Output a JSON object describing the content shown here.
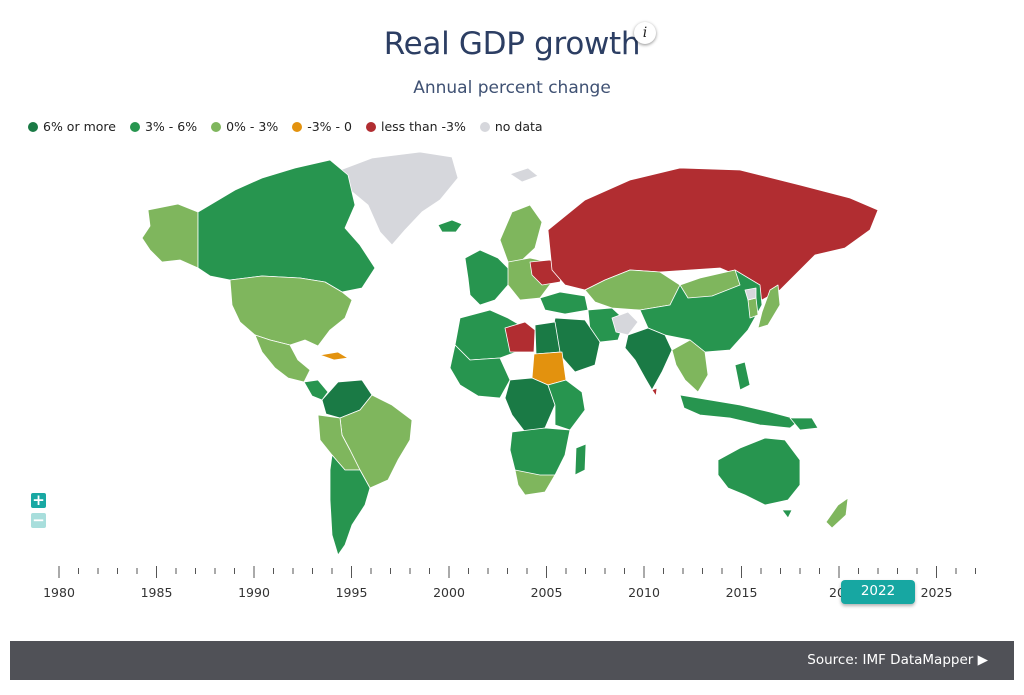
{
  "title": "Real GDP growth",
  "info_icon": "i",
  "subtitle": "Annual percent change",
  "legend": [
    {
      "label": "6% or more",
      "color": "#1a7a45"
    },
    {
      "label": "3% - 6%",
      "color": "#27954f"
    },
    {
      "label": "0% - 3%",
      "color": "#7fb65d"
    },
    {
      "label": "-3% - 0",
      "color": "#e3920e"
    },
    {
      "label": "less than -3%",
      "color": "#b12d31"
    },
    {
      "label": "no data",
      "color": "#d6d7dc"
    }
  ],
  "zoom": {
    "in_label": "+",
    "out_label": "−"
  },
  "timeline": {
    "year_labels": [
      "1980",
      "1985",
      "1990",
      "1995",
      "2000",
      "2005",
      "2010",
      "2015",
      "20",
      "2025"
    ],
    "selected_year": "2022"
  },
  "footer": {
    "source": "Source: IMF DataMapper  ▶"
  }
}
